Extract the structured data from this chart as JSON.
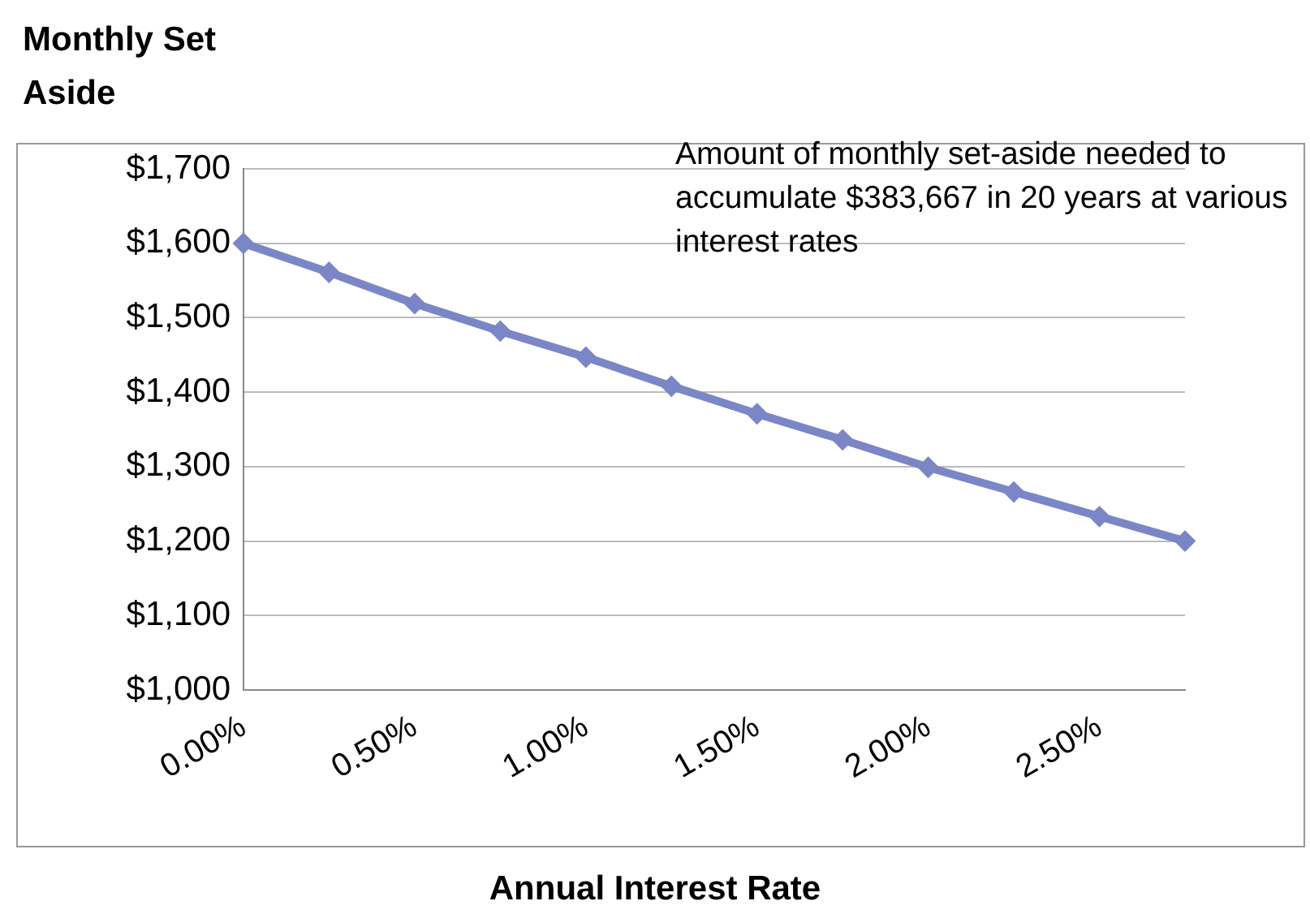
{
  "chart_data": {
    "type": "line",
    "ylabel": "Monthly Set Aside",
    "xlabel": "Annual Interest Rate",
    "annotations": [
      "Amount of monthly set-aside needed to accumulate $383,667 in 20 years at various interest rates"
    ],
    "categories": [
      "0.00%",
      null,
      "0.50%",
      null,
      "1.00%",
      null,
      "1.50%",
      null,
      "2.00%",
      null,
      "2.50%",
      null
    ],
    "series": [
      {
        "color": "#7b86c6",
        "values": [
          1600,
          1561,
          1519,
          1482,
          1447,
          1408,
          1371,
          1336,
          1299,
          1266,
          1233,
          1200
        ]
      }
    ],
    "ylim": [
      1000,
      1700
    ],
    "yticks": [
      {
        "value": 1000,
        "label": "$1,000"
      },
      {
        "value": 1100,
        "label": "$1,100"
      },
      {
        "value": 1200,
        "label": "$1,200"
      },
      {
        "value": 1300,
        "label": "$1,300"
      },
      {
        "value": 1400,
        "label": "$1,400"
      },
      {
        "value": 1500,
        "label": "$1,500"
      },
      {
        "value": 1600,
        "label": "$1,600"
      },
      {
        "value": 1700,
        "label": "$1,700"
      }
    ],
    "grid": "y",
    "legend": false,
    "marker": "diamond",
    "line_style": "solid"
  }
}
